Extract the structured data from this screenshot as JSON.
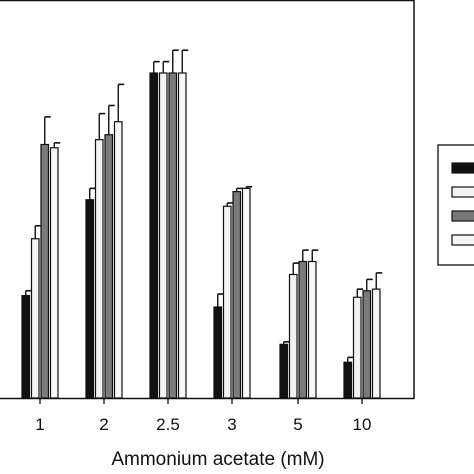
{
  "chart_data": {
    "type": "bar",
    "title": "",
    "xlabel": "Ammonium acetate (mM)",
    "ylabel": "",
    "categories": [
      "1",
      "2",
      "2.5",
      "3",
      "5",
      "10"
    ],
    "ylim": [
      0,
      100
    ],
    "grid": false,
    "legend_placement": "right",
    "series": [
      {
        "color": "#111111",
        "values": [
          31.5,
          61.0,
          100.0,
          28.0,
          16.5,
          11.0
        ],
        "errors": [
          1.5,
          3.5,
          3.5,
          4.0,
          0.8,
          1.5
        ]
      },
      {
        "color": "#f2f2f2",
        "values": [
          49.0,
          79.5,
          100.0,
          59.0,
          38.0,
          31.0
        ],
        "errors": [
          4.0,
          8.0,
          3.5,
          1.0,
          3.5,
          2.5
        ]
      },
      {
        "color": "#7a7a7a",
        "values": [
          78.0,
          81.0,
          100.0,
          63.5,
          42.0,
          33.0
        ],
        "errors": [
          8.5,
          9.0,
          7.0,
          1.0,
          3.5,
          3.5
        ]
      },
      {
        "color": "#f7f7f7",
        "values": [
          77.0,
          85.0,
          100.0,
          64.5,
          42.0,
          33.5
        ],
        "errors": [
          1.5,
          11.5,
          7.0,
          0.5,
          3.5,
          5.0
        ]
      }
    ]
  }
}
